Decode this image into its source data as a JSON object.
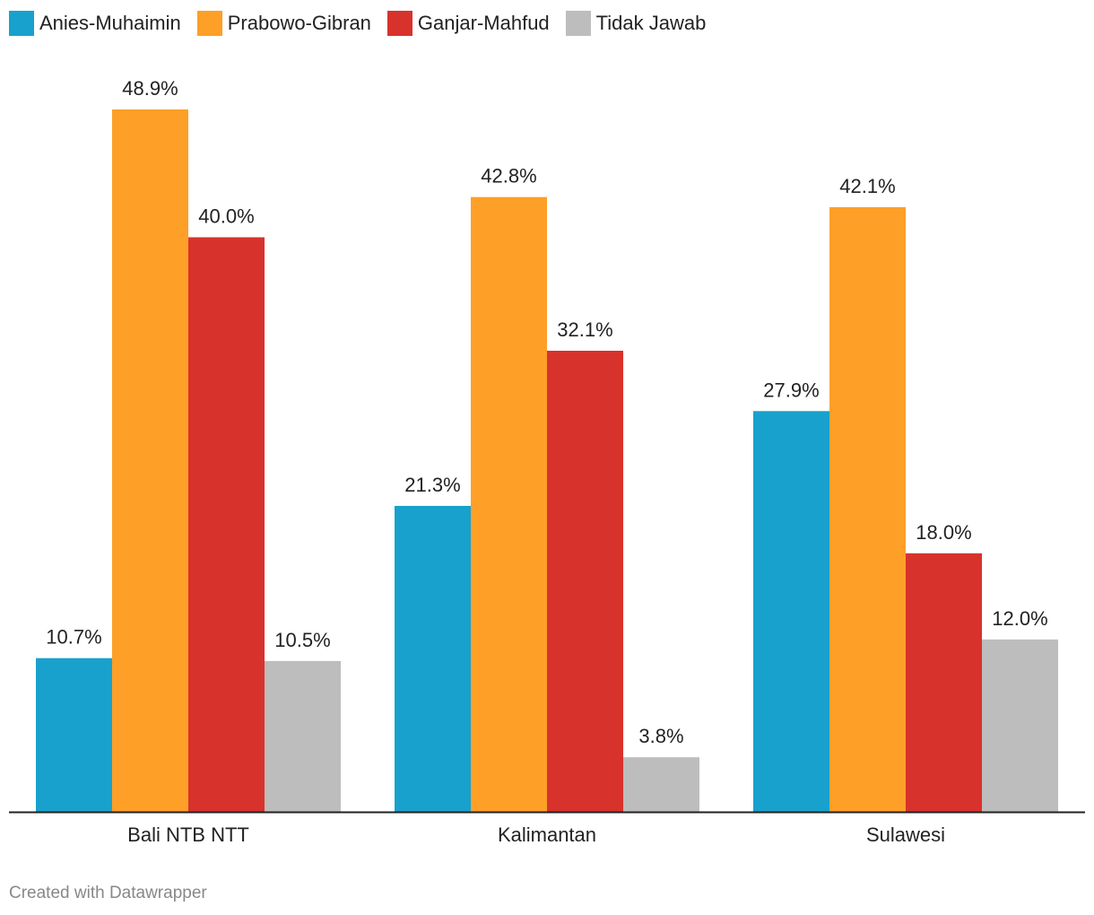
{
  "chart_data": {
    "type": "bar",
    "categories": [
      "Bali NTB NTT",
      "Kalimantan",
      "Sulawesi"
    ],
    "series": [
      {
        "name": "Anies-Muhaimin",
        "color": "#18a1cd",
        "values": [
          10.7,
          21.3,
          27.9
        ],
        "labels": [
          "10.7%",
          "21.3%",
          "27.9%"
        ]
      },
      {
        "name": "Prabowo-Gibran",
        "color": "#fe9f28",
        "values": [
          48.9,
          42.8,
          42.1
        ],
        "labels": [
          "48.9%",
          "42.8%",
          "42.1%"
        ]
      },
      {
        "name": "Ganjar-Mahfud",
        "color": "#d8322c",
        "values": [
          40.0,
          32.1,
          18.0
        ],
        "labels": [
          "40.0%",
          "32.1%",
          "18.0%"
        ]
      },
      {
        "name": "Tidak Jawab",
        "color": "#bdbdbd",
        "values": [
          10.5,
          3.8,
          12.0
        ],
        "labels": [
          "10.5%",
          "3.8%",
          "12.0%"
        ]
      }
    ],
    "ylim": [
      0,
      50
    ],
    "grid": false,
    "legend": "top-left"
  },
  "footer": "Created with Datawrapper"
}
